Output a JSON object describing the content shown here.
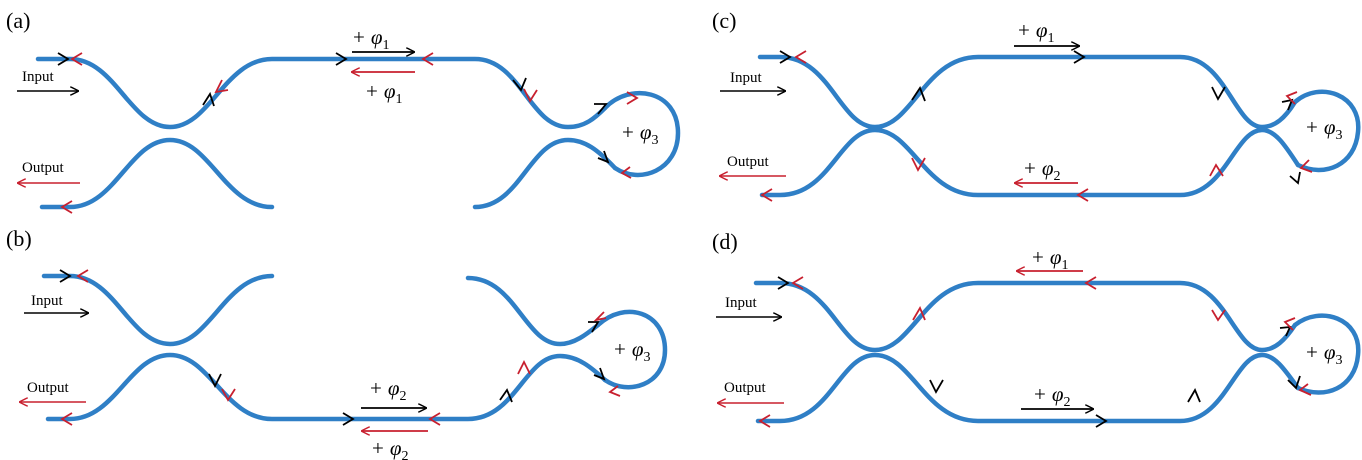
{
  "colors": {
    "waveguide": "#2f7fc6",
    "forward": "#000000",
    "backward": "#c8202f"
  },
  "panels": {
    "a": {
      "label": "(a)",
      "input": "Input",
      "output": "Output",
      "phase_top_fwd": "φ1",
      "phase_top_bwd": "φ1",
      "phase_loop": "φ3"
    },
    "b": {
      "label": "(b)",
      "input": "Input",
      "output": "Output",
      "phase_bot_fwd": "φ2",
      "phase_bot_bwd": "φ2",
      "phase_loop": "φ3"
    },
    "c": {
      "label": "(c)",
      "input": "Input",
      "output": "Output",
      "phase_top": "φ1",
      "phase_bot": "φ2",
      "phase_loop": "φ3"
    },
    "d": {
      "label": "(d)",
      "input": "Input",
      "output": "Output",
      "phase_top": "φ1",
      "phase_bot": "φ2",
      "phase_loop": "φ3"
    }
  },
  "symbols": {
    "plus": "+"
  }
}
